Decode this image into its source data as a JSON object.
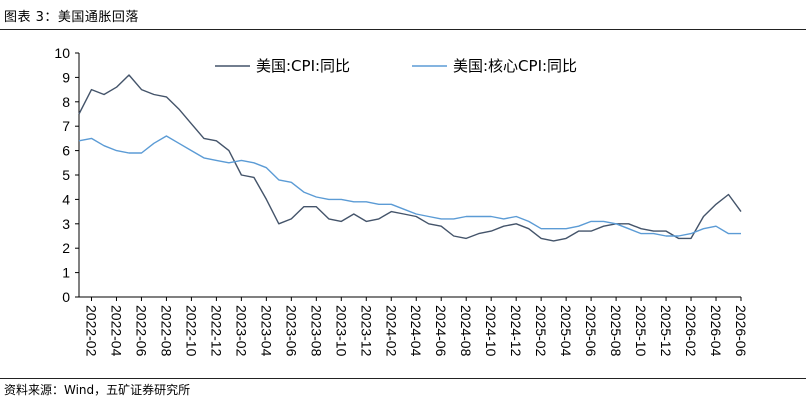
{
  "header": {
    "title": "图表 3：美国通胀回落"
  },
  "footer": {
    "source": "资料来源：Wind，五矿证券研究所"
  },
  "chart_data": {
    "type": "line",
    "title": "",
    "xlabel": "",
    "ylabel": "",
    "ylim": [
      0,
      10
    ],
    "yticks": [
      "0",
      "1",
      "2",
      "3",
      "4",
      "5",
      "6",
      "7",
      "8",
      "9",
      "10"
    ],
    "x_tick_labels": [
      "2022-02",
      "2022-04",
      "2022-06",
      "2022-08",
      "2022-10",
      "2022-12",
      "2023-02",
      "2023-04",
      "2023-06",
      "2023-08",
      "2023-10",
      "2023-12",
      "2024-02",
      "2024-04",
      "2024-06",
      "2024-08",
      "2024-10",
      "2024-12",
      "2025-02",
      "2025-04",
      "2025-06",
      "2025-08",
      "2025-10",
      "2025-12",
      "2026-02",
      "2026-04",
      "2026-06"
    ],
    "x": [
      "2022-01",
      "2022-02",
      "2022-03",
      "2022-04",
      "2022-05",
      "2022-06",
      "2022-07",
      "2022-08",
      "2022-09",
      "2022-10",
      "2022-11",
      "2022-12",
      "2023-01",
      "2023-02",
      "2023-03",
      "2023-04",
      "2023-05",
      "2023-06",
      "2023-07",
      "2023-08",
      "2023-09",
      "2023-10",
      "2023-11",
      "2023-12",
      "2024-01",
      "2024-02",
      "2024-03",
      "2024-04",
      "2024-05",
      "2024-06",
      "2024-07",
      "2024-08",
      "2024-09",
      "2024-10",
      "2024-11",
      "2024-12",
      "2025-01",
      "2025-02",
      "2025-03",
      "2025-04",
      "2025-05",
      "2025-06",
      "2025-07",
      "2025-08",
      "2025-09",
      "2025-10",
      "2025-11",
      "2025-12",
      "2026-01",
      "2026-02",
      "2026-03",
      "2026-04",
      "2026-05",
      "2026-06"
    ],
    "legend_position": "top",
    "grid": false,
    "series": [
      {
        "name": "美国:CPI:同比",
        "color": "#44546a",
        "values": [
          7.5,
          8.5,
          8.3,
          8.6,
          9.1,
          8.5,
          8.3,
          8.2,
          7.7,
          7.1,
          6.5,
          6.4,
          6.0,
          5.0,
          4.9,
          4.0,
          3.0,
          3.2,
          3.7,
          3.7,
          3.2,
          3.1,
          3.4,
          3.1,
          3.2,
          3.5,
          3.4,
          3.3,
          3.0,
          2.9,
          2.5,
          2.4,
          2.6,
          2.7,
          2.9,
          3.0,
          2.8,
          2.4,
          2.3,
          2.4,
          2.7,
          2.7,
          2.9,
          3.0,
          3.0,
          2.8,
          2.7,
          2.7,
          2.4,
          2.4,
          3.3,
          3.8,
          4.2,
          3.5
        ]
      },
      {
        "name": "美国:核心CPI:同比",
        "color": "#5b9bd5",
        "values": [
          6.4,
          6.5,
          6.2,
          6.0,
          5.9,
          5.9,
          6.3,
          6.6,
          6.3,
          6.0,
          5.7,
          5.6,
          5.5,
          5.6,
          5.5,
          5.3,
          4.8,
          4.7,
          4.3,
          4.1,
          4.0,
          4.0,
          3.9,
          3.9,
          3.8,
          3.8,
          3.6,
          3.4,
          3.3,
          3.2,
          3.2,
          3.3,
          3.3,
          3.3,
          3.2,
          3.3,
          3.1,
          2.8,
          2.8,
          2.8,
          2.9,
          3.1,
          3.1,
          3.0,
          2.8,
          2.6,
          2.6,
          2.5,
          2.5,
          2.6,
          2.8,
          2.9,
          2.6,
          2.6
        ]
      }
    ]
  }
}
